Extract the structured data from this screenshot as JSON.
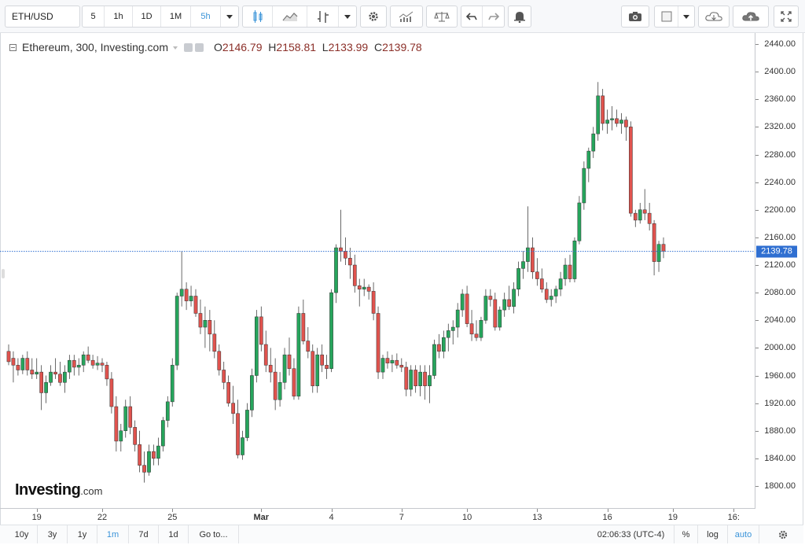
{
  "toolbar": {
    "symbol": "ETH/USD",
    "intervals": [
      "5",
      "1h",
      "1D",
      "1M",
      "5h"
    ],
    "active_interval": "5h",
    "icons": [
      "candles-icon",
      "line-chart-icon",
      "indicator-icon",
      "settings-gear-icon",
      "studies-icon",
      "compare-scale-icon",
      "undo-icon",
      "redo-icon",
      "alert-icon",
      "camera-icon",
      "template-icon",
      "cloud-download-icon",
      "cloud-upload-icon",
      "fullscreen-icon"
    ]
  },
  "legend": {
    "symbol": "Ethereum, 300, Investing.com",
    "o_label": "O",
    "o_value": "2146.79",
    "h_label": "H",
    "h_value": "2158.81",
    "l_label": "L",
    "l_value": "2133.99",
    "c_label": "C",
    "c_value": "2139.78"
  },
  "watermark": {
    "main": "Investing",
    "suffix": ".com"
  },
  "bottom_bar": {
    "ranges": [
      "10y",
      "3y",
      "1y",
      "1m",
      "7d",
      "1d"
    ],
    "active_range": "1m",
    "goto": "Go to...",
    "time": "02:06:33 (UTC-4)",
    "percent": "%",
    "log": "log",
    "auto": "auto"
  },
  "colors": {
    "up": "#26a55c",
    "down": "#e0534e",
    "last_line": "#2f6fd1",
    "accent": "#3b94d9"
  },
  "chart_data": {
    "type": "candlestick",
    "title": "Ethereum, 300, Investing.com",
    "ylim": [
      1780,
      2450
    ],
    "y_ticks": [
      1800,
      1840,
      1880,
      1920,
      1960,
      2000,
      2040,
      2080,
      2120,
      2160,
      2200,
      2240,
      2280,
      2320,
      2360,
      2400,
      2440
    ],
    "y_tick_labels": [
      "1800.00",
      "1840.00",
      "1880.00",
      "1920.00",
      "1960.00",
      "2000.00",
      "2040.00",
      "2080.00",
      "2120.00",
      "2160.00",
      "2200.00",
      "2240.00",
      "2280.00",
      "2320.00",
      "2360.00",
      "2400.00",
      "2440.00"
    ],
    "x_labels": [
      {
        "label": "19",
        "index": 6,
        "bold": false
      },
      {
        "label": "22",
        "index": 20,
        "bold": false
      },
      {
        "label": "25",
        "index": 35,
        "bold": false
      },
      {
        "label": "Mar",
        "index": 54,
        "bold": true
      },
      {
        "label": "4",
        "index": 69,
        "bold": false
      },
      {
        "label": "7",
        "index": 84,
        "bold": false
      },
      {
        "label": "10",
        "index": 98,
        "bold": false
      },
      {
        "label": "13",
        "index": 113,
        "bold": false
      },
      {
        "label": "16",
        "index": 128,
        "bold": false
      },
      {
        "label": "19",
        "index": 142,
        "bold": false
      },
      {
        "label": "16:",
        "index": 155,
        "bold": false
      }
    ],
    "last_price": 2139.78,
    "last_label": "2139.78",
    "candles": [
      [
        1995,
        2005,
        1975,
        1980
      ],
      [
        1985,
        1995,
        1950,
        1975
      ],
      [
        1975,
        1985,
        1960,
        1968
      ],
      [
        1968,
        1990,
        1962,
        1985
      ],
      [
        1985,
        1995,
        1960,
        1968
      ],
      [
        1968,
        1985,
        1955,
        1962
      ],
      [
        1962,
        1985,
        1955,
        1965
      ],
      [
        1965,
        1975,
        1910,
        1935
      ],
      [
        1935,
        1960,
        1920,
        1950
      ],
      [
        1950,
        1975,
        1945,
        1965
      ],
      [
        1965,
        1985,
        1955,
        1962
      ],
      [
        1962,
        1980,
        1945,
        1950
      ],
      [
        1950,
        1975,
        1935,
        1965
      ],
      [
        1965,
        1990,
        1955,
        1982
      ],
      [
        1982,
        1990,
        1960,
        1972
      ],
      [
        1972,
        1985,
        1960,
        1975
      ],
      [
        1975,
        1995,
        1965,
        1990
      ],
      [
        1990,
        2002,
        1978,
        1982
      ],
      [
        1982,
        1990,
        1970,
        1975
      ],
      [
        1975,
        1988,
        1968,
        1978
      ],
      [
        1978,
        1985,
        1965,
        1975
      ],
      [
        1975,
        1980,
        1945,
        1955
      ],
      [
        1955,
        1965,
        1905,
        1915
      ],
      [
        1915,
        1930,
        1850,
        1865
      ],
      [
        1865,
        1890,
        1850,
        1880
      ],
      [
        1880,
        1925,
        1870,
        1915
      ],
      [
        1915,
        1930,
        1875,
        1885
      ],
      [
        1885,
        1895,
        1850,
        1860
      ],
      [
        1860,
        1880,
        1820,
        1830
      ],
      [
        1830,
        1850,
        1805,
        1820
      ],
      [
        1820,
        1860,
        1815,
        1850
      ],
      [
        1850,
        1860,
        1830,
        1840
      ],
      [
        1840,
        1870,
        1830,
        1858
      ],
      [
        1858,
        1900,
        1850,
        1895
      ],
      [
        1895,
        1930,
        1885,
        1922
      ],
      [
        1922,
        1985,
        1915,
        1975
      ],
      [
        1975,
        2080,
        1968,
        2075
      ],
      [
        2075,
        2140,
        2060,
        2085
      ],
      [
        2085,
        2095,
        2055,
        2068
      ],
      [
        2068,
        2090,
        2060,
        2075
      ],
      [
        2075,
        2085,
        2045,
        2050
      ],
      [
        2050,
        2070,
        2020,
        2030
      ],
      [
        2030,
        2060,
        2000,
        2040
      ],
      [
        2040,
        2055,
        1995,
        2020
      ],
      [
        2020,
        2040,
        1985,
        1995
      ],
      [
        1995,
        2005,
        1960,
        1968
      ],
      [
        1968,
        1980,
        1940,
        1950
      ],
      [
        1950,
        1960,
        1915,
        1920
      ],
      [
        1920,
        1945,
        1890,
        1905
      ],
      [
        1905,
        1925,
        1840,
        1845
      ],
      [
        1845,
        1880,
        1838,
        1870
      ],
      [
        1870,
        1920,
        1865,
        1910
      ],
      [
        1910,
        1970,
        1900,
        1960
      ],
      [
        1960,
        2055,
        1950,
        2045
      ],
      [
        2045,
        2060,
        1995,
        2005
      ],
      [
        2005,
        2025,
        1965,
        1975
      ],
      [
        1975,
        2000,
        1950,
        1965
      ],
      [
        1965,
        1985,
        1910,
        1925
      ],
      [
        1925,
        1965,
        1915,
        1950
      ],
      [
        1950,
        2000,
        1940,
        1990
      ],
      [
        1990,
        2015,
        1960,
        1970
      ],
      [
        1970,
        1985,
        1925,
        1930
      ],
      [
        1930,
        2060,
        1925,
        2050
      ],
      [
        2050,
        2070,
        2005,
        2010
      ],
      [
        2010,
        2030,
        1985,
        1995
      ],
      [
        1995,
        2005,
        1935,
        1945
      ],
      [
        1945,
        2000,
        1935,
        1990
      ],
      [
        1990,
        2005,
        1965,
        1975
      ],
      [
        1975,
        1990,
        1955,
        1970
      ],
      [
        1970,
        2085,
        1965,
        2080
      ],
      [
        2080,
        2150,
        2065,
        2145
      ],
      [
        2145,
        2200,
        2125,
        2140
      ],
      [
        2140,
        2160,
        2120,
        2130
      ],
      [
        2130,
        2145,
        2100,
        2120
      ],
      [
        2120,
        2135,
        2080,
        2090
      ],
      [
        2090,
        2100,
        2060,
        2085
      ],
      [
        2085,
        2100,
        2075,
        2088
      ],
      [
        2088,
        2092,
        2070,
        2082
      ],
      [
        2082,
        2095,
        2040,
        2050
      ],
      [
        2050,
        2060,
        1955,
        1965
      ],
      [
        1965,
        1990,
        1955,
        1985
      ],
      [
        1985,
        1995,
        1970,
        1978
      ],
      [
        1978,
        1990,
        1965,
        1982
      ],
      [
        1982,
        1992,
        1970,
        1975
      ],
      [
        1975,
        1985,
        1965,
        1972
      ],
      [
        1972,
        1980,
        1930,
        1940
      ],
      [
        1940,
        1975,
        1930,
        1968
      ],
      [
        1968,
        1975,
        1935,
        1945
      ],
      [
        1945,
        1975,
        1930,
        1965
      ],
      [
        1965,
        1975,
        1925,
        1945
      ],
      [
        1945,
        1975,
        1920,
        1960
      ],
      [
        1960,
        2012,
        1955,
        2005
      ],
      [
        2005,
        2020,
        1985,
        1995
      ],
      [
        1995,
        2025,
        1985,
        2015
      ],
      [
        2015,
        2035,
        1995,
        2025
      ],
      [
        2025,
        2040,
        2005,
        2030
      ],
      [
        2030,
        2065,
        2015,
        2055
      ],
      [
        2055,
        2085,
        2045,
        2078
      ],
      [
        2078,
        2090,
        2030,
        2035
      ],
      [
        2035,
        2055,
        2010,
        2020
      ],
      [
        2020,
        2040,
        2010,
        2015
      ],
      [
        2015,
        2045,
        2010,
        2040
      ],
      [
        2040,
        2085,
        2035,
        2075
      ],
      [
        2075,
        2085,
        2060,
        2070
      ],
      [
        2070,
        2080,
        2025,
        2030
      ],
      [
        2030,
        2060,
        2025,
        2055
      ],
      [
        2055,
        2080,
        2045,
        2070
      ],
      [
        2070,
        2090,
        2055,
        2060
      ],
      [
        2060,
        2095,
        2050,
        2085
      ],
      [
        2085,
        2125,
        2075,
        2115
      ],
      [
        2115,
        2140,
        2100,
        2125
      ],
      [
        2125,
        2205,
        2110,
        2145
      ],
      [
        2145,
        2160,
        2100,
        2110
      ],
      [
        2110,
        2130,
        2090,
        2100
      ],
      [
        2100,
        2115,
        2080,
        2085
      ],
      [
        2085,
        2095,
        2065,
        2070
      ],
      [
        2070,
        2085,
        2060,
        2075
      ],
      [
        2075,
        2090,
        2065,
        2085
      ],
      [
        2085,
        2110,
        2075,
        2100
      ],
      [
        2100,
        2130,
        2090,
        2120
      ],
      [
        2120,
        2135,
        2095,
        2100
      ],
      [
        2100,
        2160,
        2095,
        2155
      ],
      [
        2155,
        2220,
        2150,
        2210
      ],
      [
        2210,
        2270,
        2200,
        2260
      ],
      [
        2260,
        2290,
        2240,
        2285
      ],
      [
        2285,
        2320,
        2275,
        2310
      ],
      [
        2310,
        2385,
        2300,
        2365
      ],
      [
        2365,
        2375,
        2315,
        2325
      ],
      [
        2325,
        2345,
        2310,
        2330
      ],
      [
        2330,
        2350,
        2315,
        2332
      ],
      [
        2332,
        2345,
        2320,
        2325
      ],
      [
        2325,
        2340,
        2310,
        2330
      ],
      [
        2330,
        2335,
        2300,
        2320
      ],
      [
        2320,
        2328,
        2190,
        2195
      ],
      [
        2195,
        2200,
        2175,
        2185
      ],
      [
        2185,
        2210,
        2180,
        2200
      ],
      [
        2200,
        2230,
        2185,
        2195
      ],
      [
        2195,
        2210,
        2170,
        2180
      ],
      [
        2180,
        2185,
        2105,
        2125
      ],
      [
        2125,
        2155,
        2110,
        2150
      ],
      [
        2150,
        2160,
        2130,
        2140
      ]
    ]
  }
}
